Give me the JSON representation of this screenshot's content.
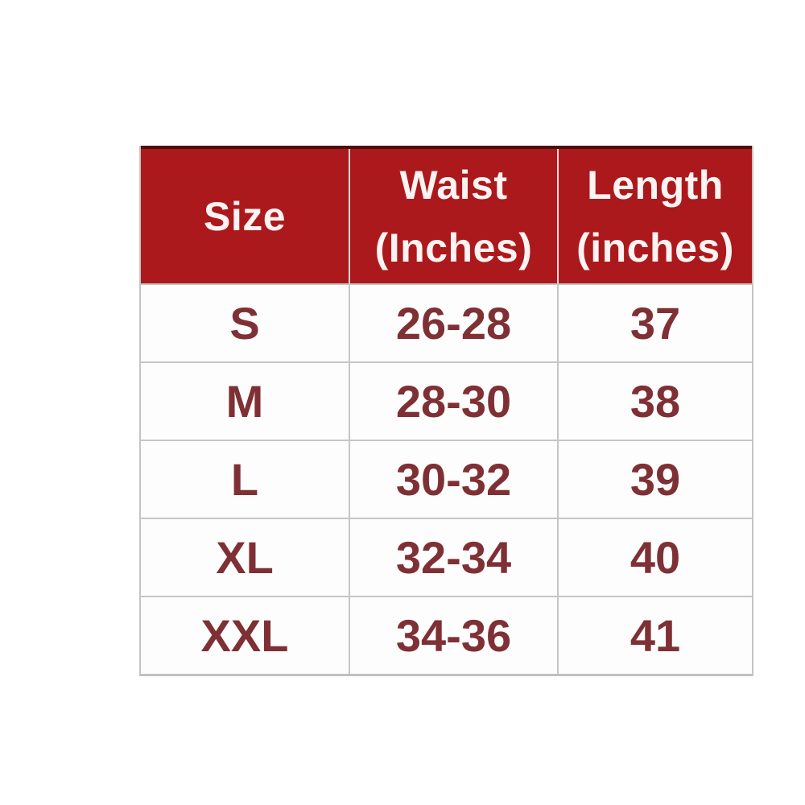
{
  "size_chart": {
    "header": {
      "size": "Size",
      "waist": [
        "Waist",
        "(Inches)"
      ],
      "length": [
        "Length",
        "(inches)"
      ]
    },
    "rows": [
      {
        "size": "S",
        "waist": "26-28",
        "length": "37"
      },
      {
        "size": "M",
        "waist": "28-30",
        "length": "38"
      },
      {
        "size": "L",
        "waist": "30-32",
        "length": "39"
      },
      {
        "size": "XL",
        "waist": "32-34",
        "length": "40"
      },
      {
        "size": "XXL",
        "waist": "34-36",
        "length": "41"
      }
    ],
    "colors": {
      "header_bg": "#ab191c",
      "header_text": "#fcf3f2",
      "header_top_border": "#4e0e10",
      "header_divider": "#eedad8",
      "body_text": "#7e3035",
      "grid_border": "#c6c6c6",
      "cell_bg": "#fdfdfd",
      "page_bg": "#ffffff"
    }
  }
}
